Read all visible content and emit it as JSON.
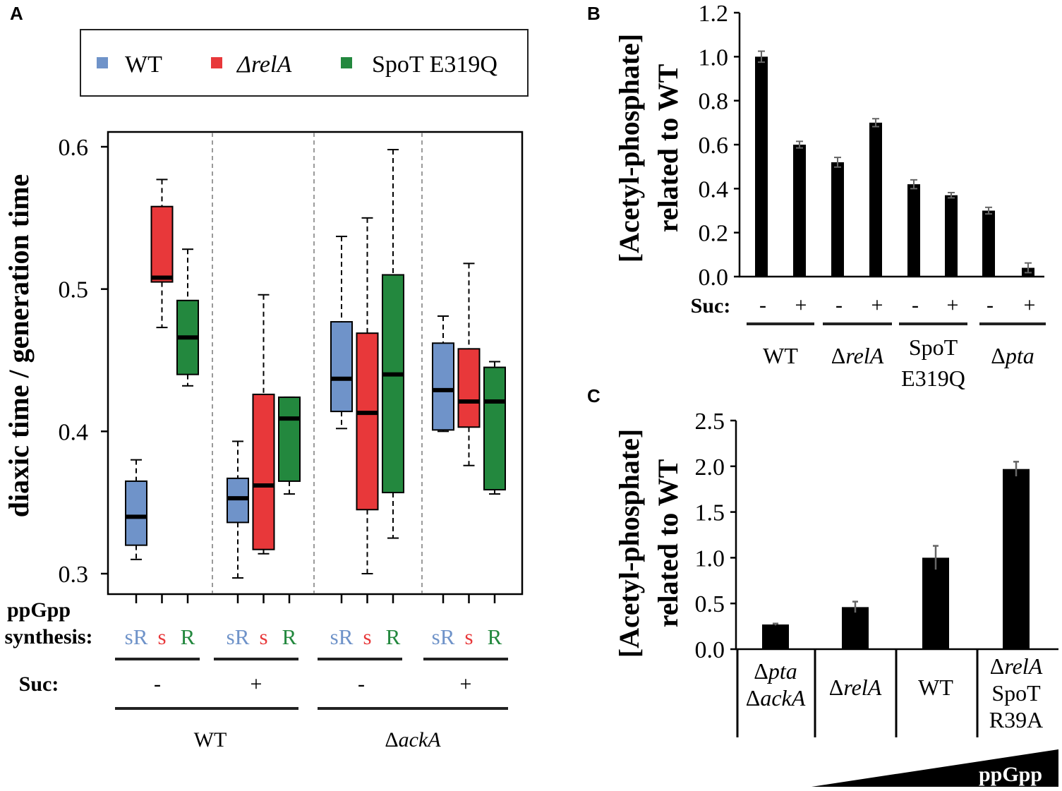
{
  "panel_letters": {
    "A": "A",
    "B": "B",
    "C": "C"
  },
  "colors": {
    "WT": "#6f93c9",
    "relA": "#e8383a",
    "spoT": "#23883e"
  },
  "chart_data": [
    {
      "id": "A",
      "type": "box",
      "ylabel": "diaxic time / generation time",
      "ylim": [
        0.3,
        0.6
      ],
      "yticks": [
        "0.3",
        "0.4",
        "0.5",
        "0.6"
      ],
      "legend": [
        {
          "key": "WT",
          "label": "WT"
        },
        {
          "key": "relA",
          "label": "ΔrelA"
        },
        {
          "key": "spoT",
          "label": "SpoT E319Q"
        }
      ],
      "row_labels": {
        "ppgpp": "ppGpp",
        "synthesis": "synthesis:",
        "suc": "Suc:"
      },
      "synthesis_labels": [
        "sR",
        "s",
        "R"
      ],
      "groups": [
        {
          "suc": "-",
          "boxes": [
            {
              "strain": "WT",
              "min": 0.31,
              "q1": 0.32,
              "median": 0.34,
              "q3": 0.365,
              "max": 0.38
            },
            {
              "strain": "relA",
              "min": 0.473,
              "q1": 0.505,
              "median": 0.508,
              "q3": 0.558,
              "max": 0.577
            },
            {
              "strain": "spoT",
              "min": 0.432,
              "q1": 0.44,
              "median": 0.466,
              "q3": 0.492,
              "max": 0.528
            }
          ]
        },
        {
          "suc": "+",
          "boxes": [
            {
              "strain": "WT",
              "min": 0.297,
              "q1": 0.336,
              "median": 0.353,
              "q3": 0.367,
              "max": 0.393
            },
            {
              "strain": "relA",
              "min": 0.314,
              "q1": 0.317,
              "median": 0.362,
              "q3": 0.426,
              "max": 0.496
            },
            {
              "strain": "spoT",
              "min": 0.356,
              "q1": 0.365,
              "median": 0.409,
              "q3": 0.424,
              "max": 0.424
            }
          ]
        },
        {
          "suc": "-",
          "boxes": [
            {
              "strain": "WT",
              "min": 0.402,
              "q1": 0.414,
              "median": 0.437,
              "q3": 0.477,
              "max": 0.537
            },
            {
              "strain": "relA",
              "min": 0.3,
              "q1": 0.345,
              "median": 0.413,
              "q3": 0.469,
              "max": 0.55
            },
            {
              "strain": "spoT",
              "min": 0.325,
              "q1": 0.357,
              "median": 0.44,
              "q3": 0.51,
              "max": 0.598
            }
          ]
        },
        {
          "suc": "+",
          "boxes": [
            {
              "strain": "WT",
              "min": 0.4,
              "q1": 0.401,
              "median": 0.429,
              "q3": 0.462,
              "max": 0.481
            },
            {
              "strain": "relA",
              "min": 0.376,
              "q1": 0.403,
              "median": 0.421,
              "q3": 0.458,
              "max": 0.518
            },
            {
              "strain": "spoT",
              "min": 0.356,
              "q1": 0.359,
              "median": 0.421,
              "q3": 0.445,
              "max": 0.449
            }
          ]
        }
      ],
      "strain_groups": [
        {
          "label": "WT",
          "italic": "",
          "prefix": ""
        },
        {
          "label": "ΔackA",
          "prefix": "Δ",
          "italic": "ackA"
        }
      ]
    },
    {
      "id": "B",
      "type": "bar",
      "ylabel": [
        "[Acetyl-phosphate]",
        "related to WT"
      ],
      "ylim": [
        0,
        1.2
      ],
      "yticks": [
        "0.0",
        "0.2",
        "0.4",
        "0.6",
        "0.8",
        "1.0",
        "1.2"
      ],
      "suc_label": "Suc:",
      "bars": [
        {
          "suc": "-",
          "value": 1.0,
          "err": 0.025
        },
        {
          "suc": "+",
          "value": 0.6,
          "err": 0.015
        },
        {
          "suc": "-",
          "value": 0.52,
          "err": 0.022
        },
        {
          "suc": "+",
          "value": 0.7,
          "err": 0.018
        },
        {
          "suc": "-",
          "value": 0.42,
          "err": 0.02
        },
        {
          "suc": "+",
          "value": 0.37,
          "err": 0.012
        },
        {
          "suc": "-",
          "value": 0.3,
          "err": 0.015
        },
        {
          "suc": "+",
          "value": 0.04,
          "err": 0.022
        }
      ],
      "groups": [
        {
          "lines": [
            "WT"
          ]
        },
        {
          "lines": [
            "ΔrelA"
          ]
        },
        {
          "lines": [
            "SpoT",
            "E319Q"
          ]
        },
        {
          "lines": [
            "Δpta"
          ]
        }
      ]
    },
    {
      "id": "C",
      "type": "bar",
      "ylabel": [
        "[Acetyl-phosphate]",
        "related to WT"
      ],
      "ylim": [
        0,
        2.5
      ],
      "yticks": [
        "0.0",
        "0.5",
        "1.0",
        "1.5",
        "2.0",
        "2.5"
      ],
      "bars": [
        {
          "value": 0.27,
          "err": 0.01,
          "lines": [
            "Δpta",
            "ΔackA"
          ]
        },
        {
          "value": 0.46,
          "err": 0.06,
          "lines": [
            "ΔrelA"
          ]
        },
        {
          "value": 1.0,
          "err": 0.13,
          "lines": [
            "WT"
          ]
        },
        {
          "value": 1.97,
          "err": 0.08,
          "lines": [
            "ΔrelA",
            "SpoT",
            "R39A"
          ]
        }
      ],
      "gradient_label": "ppGpp"
    }
  ]
}
